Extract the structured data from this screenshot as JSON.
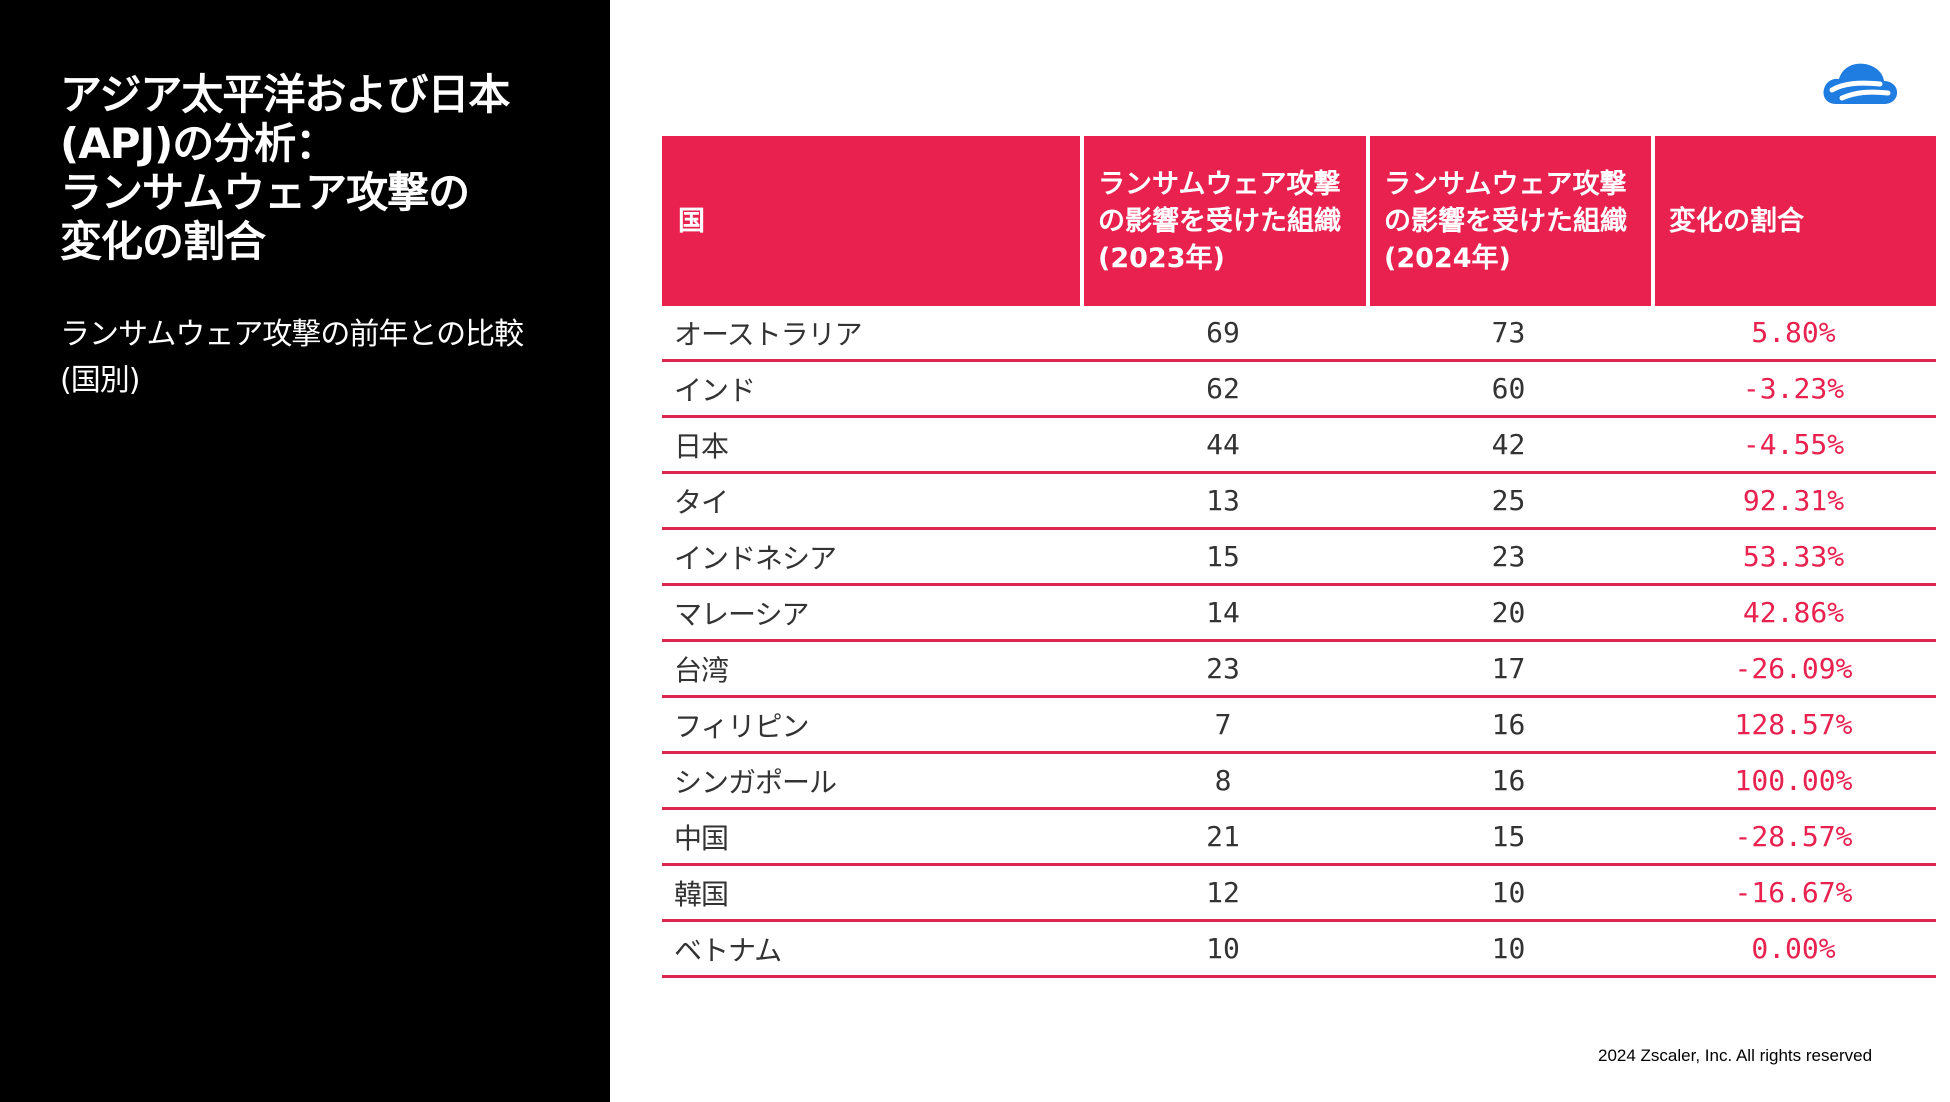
{
  "slide": {
    "title_lines": [
      "アジア太平洋および日本",
      "(APJ)の分析：",
      "ランサムウェア攻撃の",
      "変化の割合"
    ],
    "subtitle_lines": [
      "ランサムウェア攻撃の前年との比較",
      "(国別)"
    ],
    "copyright": "2024 Zscaler, Inc. All rights reserved"
  },
  "brand": {
    "logo_icon": "zscaler-cloud-icon",
    "accent": "#e8214f",
    "logo_color": "#1f7ce0"
  },
  "table": {
    "headers": [
      "国",
      "ランサムウェア攻撃の影響を受けた組織(2023年)",
      "ランサムウェア攻撃の影響を受けた組織(2024年)",
      "変化の割合"
    ],
    "rows": [
      {
        "country": "オーストラリア",
        "y2023": "69",
        "y2024": "73",
        "change": "5.80%"
      },
      {
        "country": "インド",
        "y2023": "62",
        "y2024": "60",
        "change": "-3.23%"
      },
      {
        "country": "日本",
        "y2023": "44",
        "y2024": "42",
        "change": "-4.55%"
      },
      {
        "country": "タイ",
        "y2023": "13",
        "y2024": "25",
        "change": "92.31%"
      },
      {
        "country": "インドネシア",
        "y2023": "15",
        "y2024": "23",
        "change": "53.33%"
      },
      {
        "country": "マレーシア",
        "y2023": "14",
        "y2024": "20",
        "change": "42.86%"
      },
      {
        "country": "台湾",
        "y2023": "23",
        "y2024": "17",
        "change": "-26.09%"
      },
      {
        "country": "フィリピン",
        "y2023": "7",
        "y2024": "16",
        "change": "128.57%"
      },
      {
        "country": "シンガポール",
        "y2023": "8",
        "y2024": "16",
        "change": "100.00%"
      },
      {
        "country": "中国",
        "y2023": "21",
        "y2024": "15",
        "change": "-28.57%"
      },
      {
        "country": "韓国",
        "y2023": "12",
        "y2024": "10",
        "change": "-16.67%"
      },
      {
        "country": "ベトナム",
        "y2023": "10",
        "y2024": "10",
        "change": "0.00%"
      }
    ]
  }
}
